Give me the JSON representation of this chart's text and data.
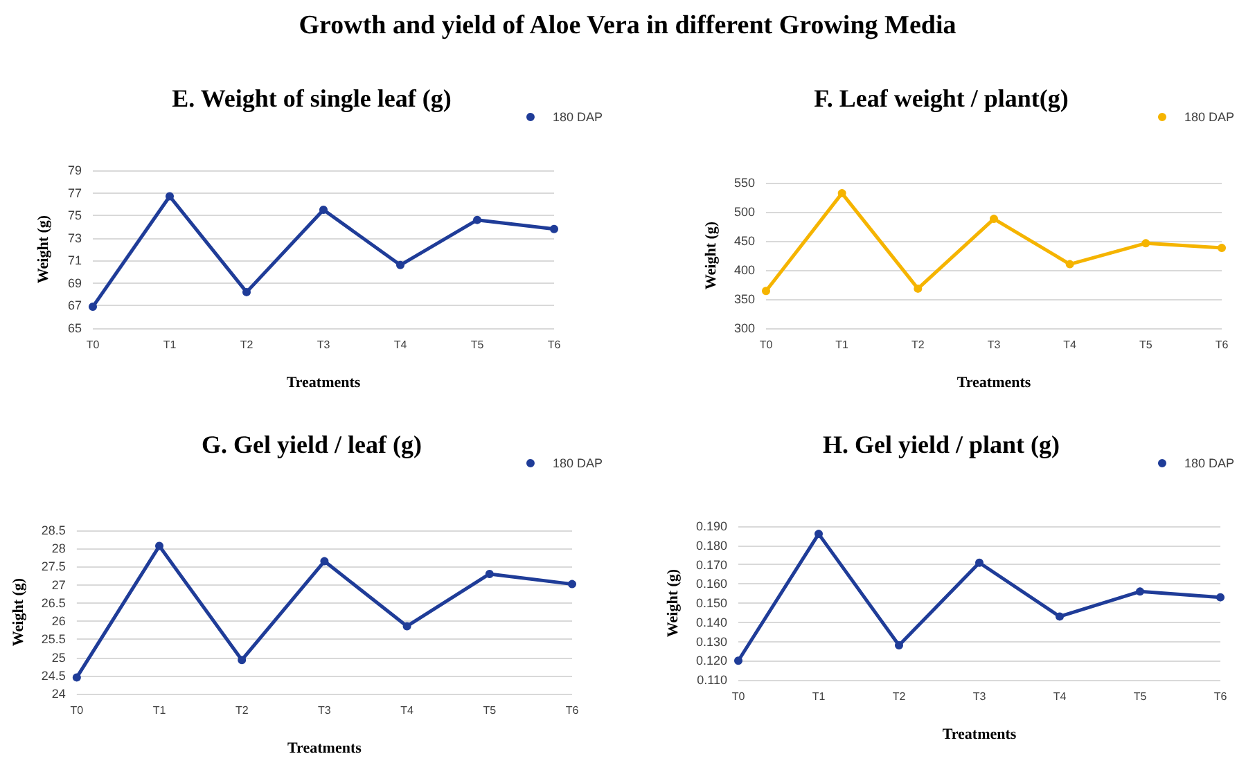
{
  "chart_data": [
    {
      "type": "line",
      "title": "E. Weight of single leaf (g)",
      "annotations": [
        "Growth and yield of Aloe Vera in different Growing Media"
      ],
      "xlabel": "Treatments",
      "ylabel": "Weight (g)",
      "categories": [
        "T0",
        "T1",
        "T2",
        "T3",
        "T4",
        "T5",
        "T6"
      ],
      "series": [
        {
          "name": "180 DAP",
          "color": "#1f3c98",
          "values": [
            66.9,
            76.7,
            68.2,
            75.5,
            70.6,
            74.6,
            73.8
          ]
        }
      ],
      "ylim": [
        65,
        79
      ],
      "yticks": [
        65,
        67,
        69,
        71,
        73,
        75,
        77,
        79
      ],
      "grid": "y",
      "legend": "top right",
      "marker": "circle"
    },
    {
      "type": "line",
      "title": "F. Leaf weight / plant(g)",
      "xlabel": "Treatments",
      "ylabel": "Weight (g)",
      "categories": [
        "T0",
        "T1",
        "T2",
        "T3",
        "T4",
        "T5",
        "T6"
      ],
      "series": [
        {
          "name": "180 DAP",
          "color": "#f5b400",
          "values": [
            364,
            532,
            368,
            488,
            410,
            446,
            438
          ]
        }
      ],
      "ylim": [
        300,
        550
      ],
      "yticks": [
        300,
        350,
        400,
        450,
        500,
        550
      ],
      "grid": "y",
      "legend": "top right",
      "marker": "circle"
    },
    {
      "type": "line",
      "title": "G. Gel yield / leaf (g)",
      "xlabel": "Treatments",
      "ylabel": "Weight (g)",
      "categories": [
        "T0",
        "T1",
        "T2",
        "T3",
        "T4",
        "T5",
        "T6"
      ],
      "series": [
        {
          "name": "180 DAP",
          "color": "#1f3c98",
          "values": [
            24.45,
            28.07,
            24.93,
            27.65,
            25.86,
            27.3,
            27.02
          ]
        }
      ],
      "ylim": [
        24,
        28.5
      ],
      "yticks": [
        24,
        24.5,
        25,
        25.5,
        26,
        26.5,
        27,
        27.5,
        28,
        28.5
      ],
      "grid": "y",
      "legend": "top right",
      "marker": "circle"
    },
    {
      "type": "line",
      "title": "H. Gel yield / plant (g)",
      "xlabel": "Treatments",
      "ylabel": "Weight (g)",
      "categories": [
        "T0",
        "T1",
        "T2",
        "T3",
        "T4",
        "T5",
        "T6"
      ],
      "series": [
        {
          "name": "180 DAP",
          "color": "#1f3c98",
          "values": [
            0.12,
            0.186,
            0.128,
            0.171,
            0.143,
            0.156,
            0.153
          ]
        }
      ],
      "ylim": [
        0.11,
        0.19
      ],
      "yticks": [
        {
          "value": 0.11,
          "label": "0.110"
        },
        {
          "value": 0.12,
          "label": "0.120"
        },
        {
          "value": 0.13,
          "label": "0.130"
        },
        {
          "value": 0.14,
          "label": "0.140"
        },
        {
          "value": 0.15,
          "label": "0.150"
        },
        {
          "value": 0.16,
          "label": "0.160"
        },
        {
          "value": 0.17,
          "label": "0.170"
        },
        {
          "value": 0.18,
          "label": "0.180"
        },
        {
          "value": 0.19,
          "label": "0.190"
        }
      ],
      "grid": "y",
      "legend": "top right",
      "marker": "circle"
    }
  ]
}
